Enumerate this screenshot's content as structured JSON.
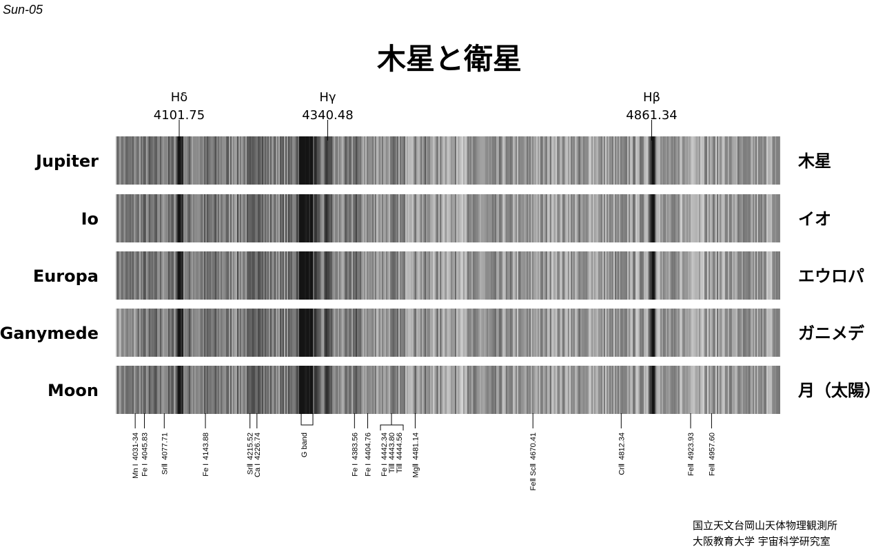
{
  "corner_label": "Sun-05",
  "title": "木星と衛星",
  "hydrogen_lines": [
    {
      "name": "Hδ",
      "wavelength": "4101.75"
    },
    {
      "name": "Hγ",
      "wavelength": "4340.48"
    },
    {
      "name": "Hβ",
      "wavelength": "4861.34"
    }
  ],
  "spectra": [
    {
      "name": "Jupiter",
      "name_ja": "木星"
    },
    {
      "name": "Io",
      "name_ja": "イオ"
    },
    {
      "name": "Europa",
      "name_ja": "エウロパ"
    },
    {
      "name": "Ganymede",
      "name_ja": "ガニメデ"
    },
    {
      "name": "Moon",
      "name_ja": "月（太陽）"
    }
  ],
  "line_ids": [
    {
      "species": "Mn I",
      "wavelength": "4031-34"
    },
    {
      "species": "Fe I",
      "wavelength": "4045.83"
    },
    {
      "species": "SrⅡ",
      "wavelength": "4077.71"
    },
    {
      "species": "Fe I",
      "wavelength": "4143.88"
    },
    {
      "species": "SrⅡ",
      "wavelength": "4215.52"
    },
    {
      "species": "Ca I",
      "wavelength": "4226.74"
    },
    {
      "species": "G band"
    },
    {
      "species": "Fe I",
      "wavelength": "4383.56"
    },
    {
      "species": "Fe I",
      "wavelength": "4404.76"
    },
    {
      "species": "Fe I",
      "wavelength": "4442.34"
    },
    {
      "species": "TiⅡ",
      "wavelength": "4443.80"
    },
    {
      "species": "TiⅡ",
      "wavelength": "4444.56"
    },
    {
      "species": "MgⅡ",
      "wavelength": "4481.14"
    },
    {
      "species": "FeⅡ ScⅡ",
      "wavelength": "4670.41"
    },
    {
      "species": "CrⅡ",
      "wavelength": "4812.34"
    },
    {
      "species": "FeⅡ",
      "wavelength": "4923.93"
    },
    {
      "species": "FeⅡ",
      "wavelength": "4957.60"
    }
  ],
  "credits": [
    "国立天文台岡山天体物理観測所",
    "大阪教育大学 宇宙科学研究室"
  ]
}
